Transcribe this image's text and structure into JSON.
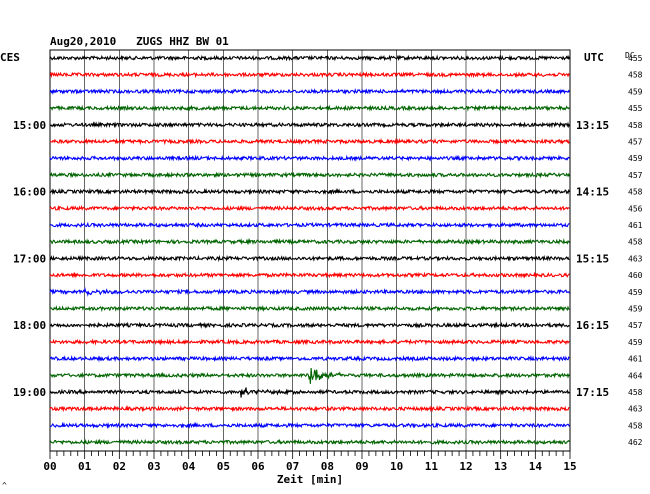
{
  "chart_data": {
    "type": "line",
    "title": "Aug20,2010   ZUGS HHZ BW 01",
    "left_corner_label": "CES",
    "right_corner_label": "UTC",
    "dc_label": "DC",
    "xlabel": "Zeit [min]",
    "footnote": "^",
    "xlim": [
      0,
      15
    ],
    "x_ticks": [
      "00",
      "01",
      "02",
      "03",
      "04",
      "05",
      "06",
      "07",
      "08",
      "09",
      "10",
      "11",
      "12",
      "13",
      "14",
      "15"
    ],
    "left_hour_labels": [
      "15:00",
      "16:00",
      "17:00",
      "18:00",
      "19:00"
    ],
    "right_hour_labels": [
      "13:15",
      "14:15",
      "15:15",
      "16:15",
      "17:15"
    ],
    "hour_label_traces": [
      4,
      8,
      12,
      16,
      20
    ],
    "trace_colors": [
      "#000000",
      "#ff0000",
      "#0000ff",
      "#006400"
    ],
    "dc_values": [
      455,
      458,
      459,
      455,
      458,
      457,
      459,
      457,
      458,
      456,
      461,
      458,
      463,
      460,
      459,
      459,
      457,
      459,
      461,
      464,
      458,
      463,
      458,
      462
    ],
    "events": [
      {
        "trace": 19,
        "minute": 7.5,
        "amplitude": "large"
      },
      {
        "trace": 20,
        "minute": 5.5,
        "amplitude": "medium"
      },
      {
        "trace": 14,
        "minute": 1.0,
        "amplitude": "small"
      }
    ],
    "grid": true
  }
}
